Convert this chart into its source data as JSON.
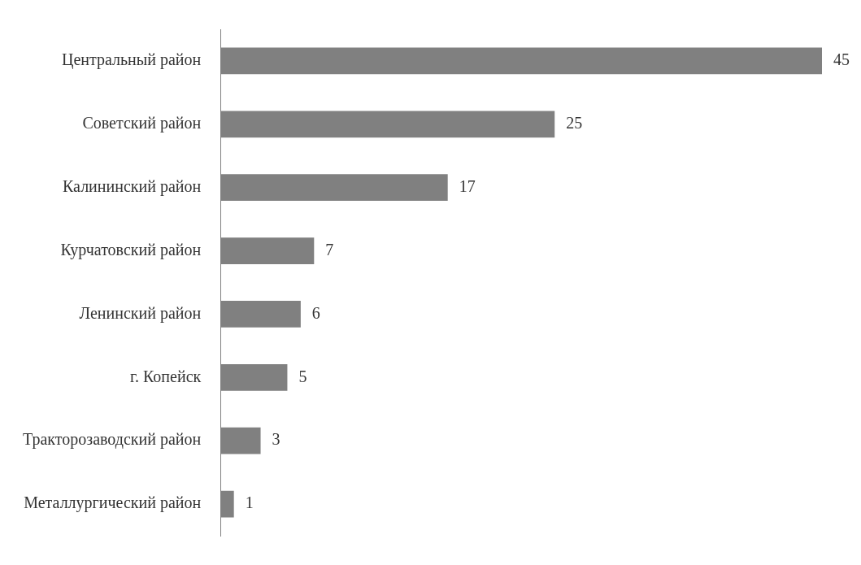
{
  "chart_data": {
    "type": "bar",
    "orientation": "horizontal",
    "categories": [
      "Центральный район",
      "Советский район",
      "Калининский район",
      "Курчатовский район",
      "Ленинский район",
      "г. Копейск",
      "Тракторозаводский район",
      "Металлургический район"
    ],
    "values": [
      45,
      25,
      17,
      7,
      6,
      5,
      3,
      1
    ],
    "color": "#808080",
    "data_labels": true,
    "legend": false
  }
}
